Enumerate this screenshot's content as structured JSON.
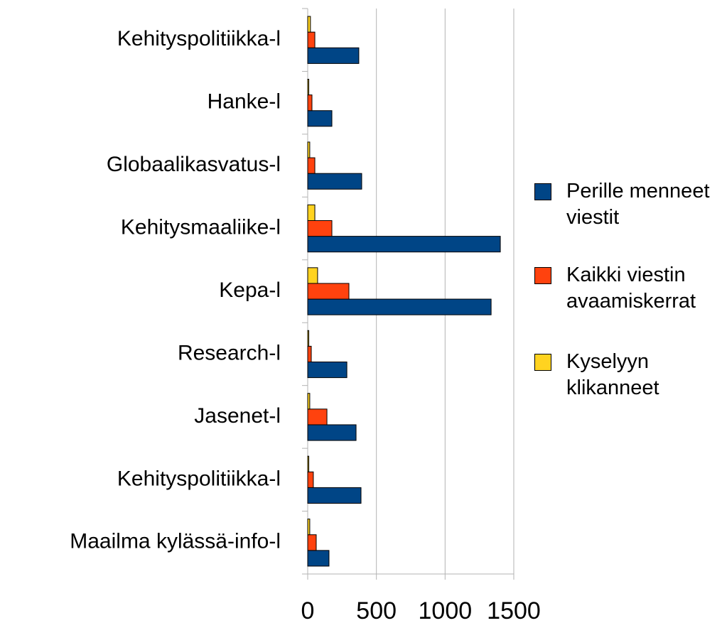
{
  "chart_data": {
    "type": "barh",
    "categories": [
      "Kehityspolitiikka-l",
      "Hanke-l",
      "Globaalikasvatus-l",
      "Kehitysmaaliike-l",
      "Kepa-l",
      "Research-l",
      "Jasenet-l",
      "Kehityspolitiikka-l",
      "Maailma kylässä-info-l"
    ],
    "series": [
      {
        "name": "Perille menneet viestit",
        "color": "#004586",
        "values": [
          372,
          176,
          393,
          1402,
          1335,
          285,
          352,
          388,
          155
        ]
      },
      {
        "name": "Kaikki viestin avaamiskerrat",
        "color": "#ff420e",
        "values": [
          52,
          31,
          52,
          176,
          300,
          26,
          140,
          41,
          62
        ]
      },
      {
        "name": "Kyselyyn klikanneet",
        "color": "#ffd320",
        "values": [
          20,
          8,
          15,
          52,
          72,
          8,
          15,
          8,
          15
        ]
      }
    ],
    "xlim": [
      0,
      1500
    ],
    "xticks": [
      0,
      500,
      1000,
      1500
    ],
    "grid": true
  }
}
